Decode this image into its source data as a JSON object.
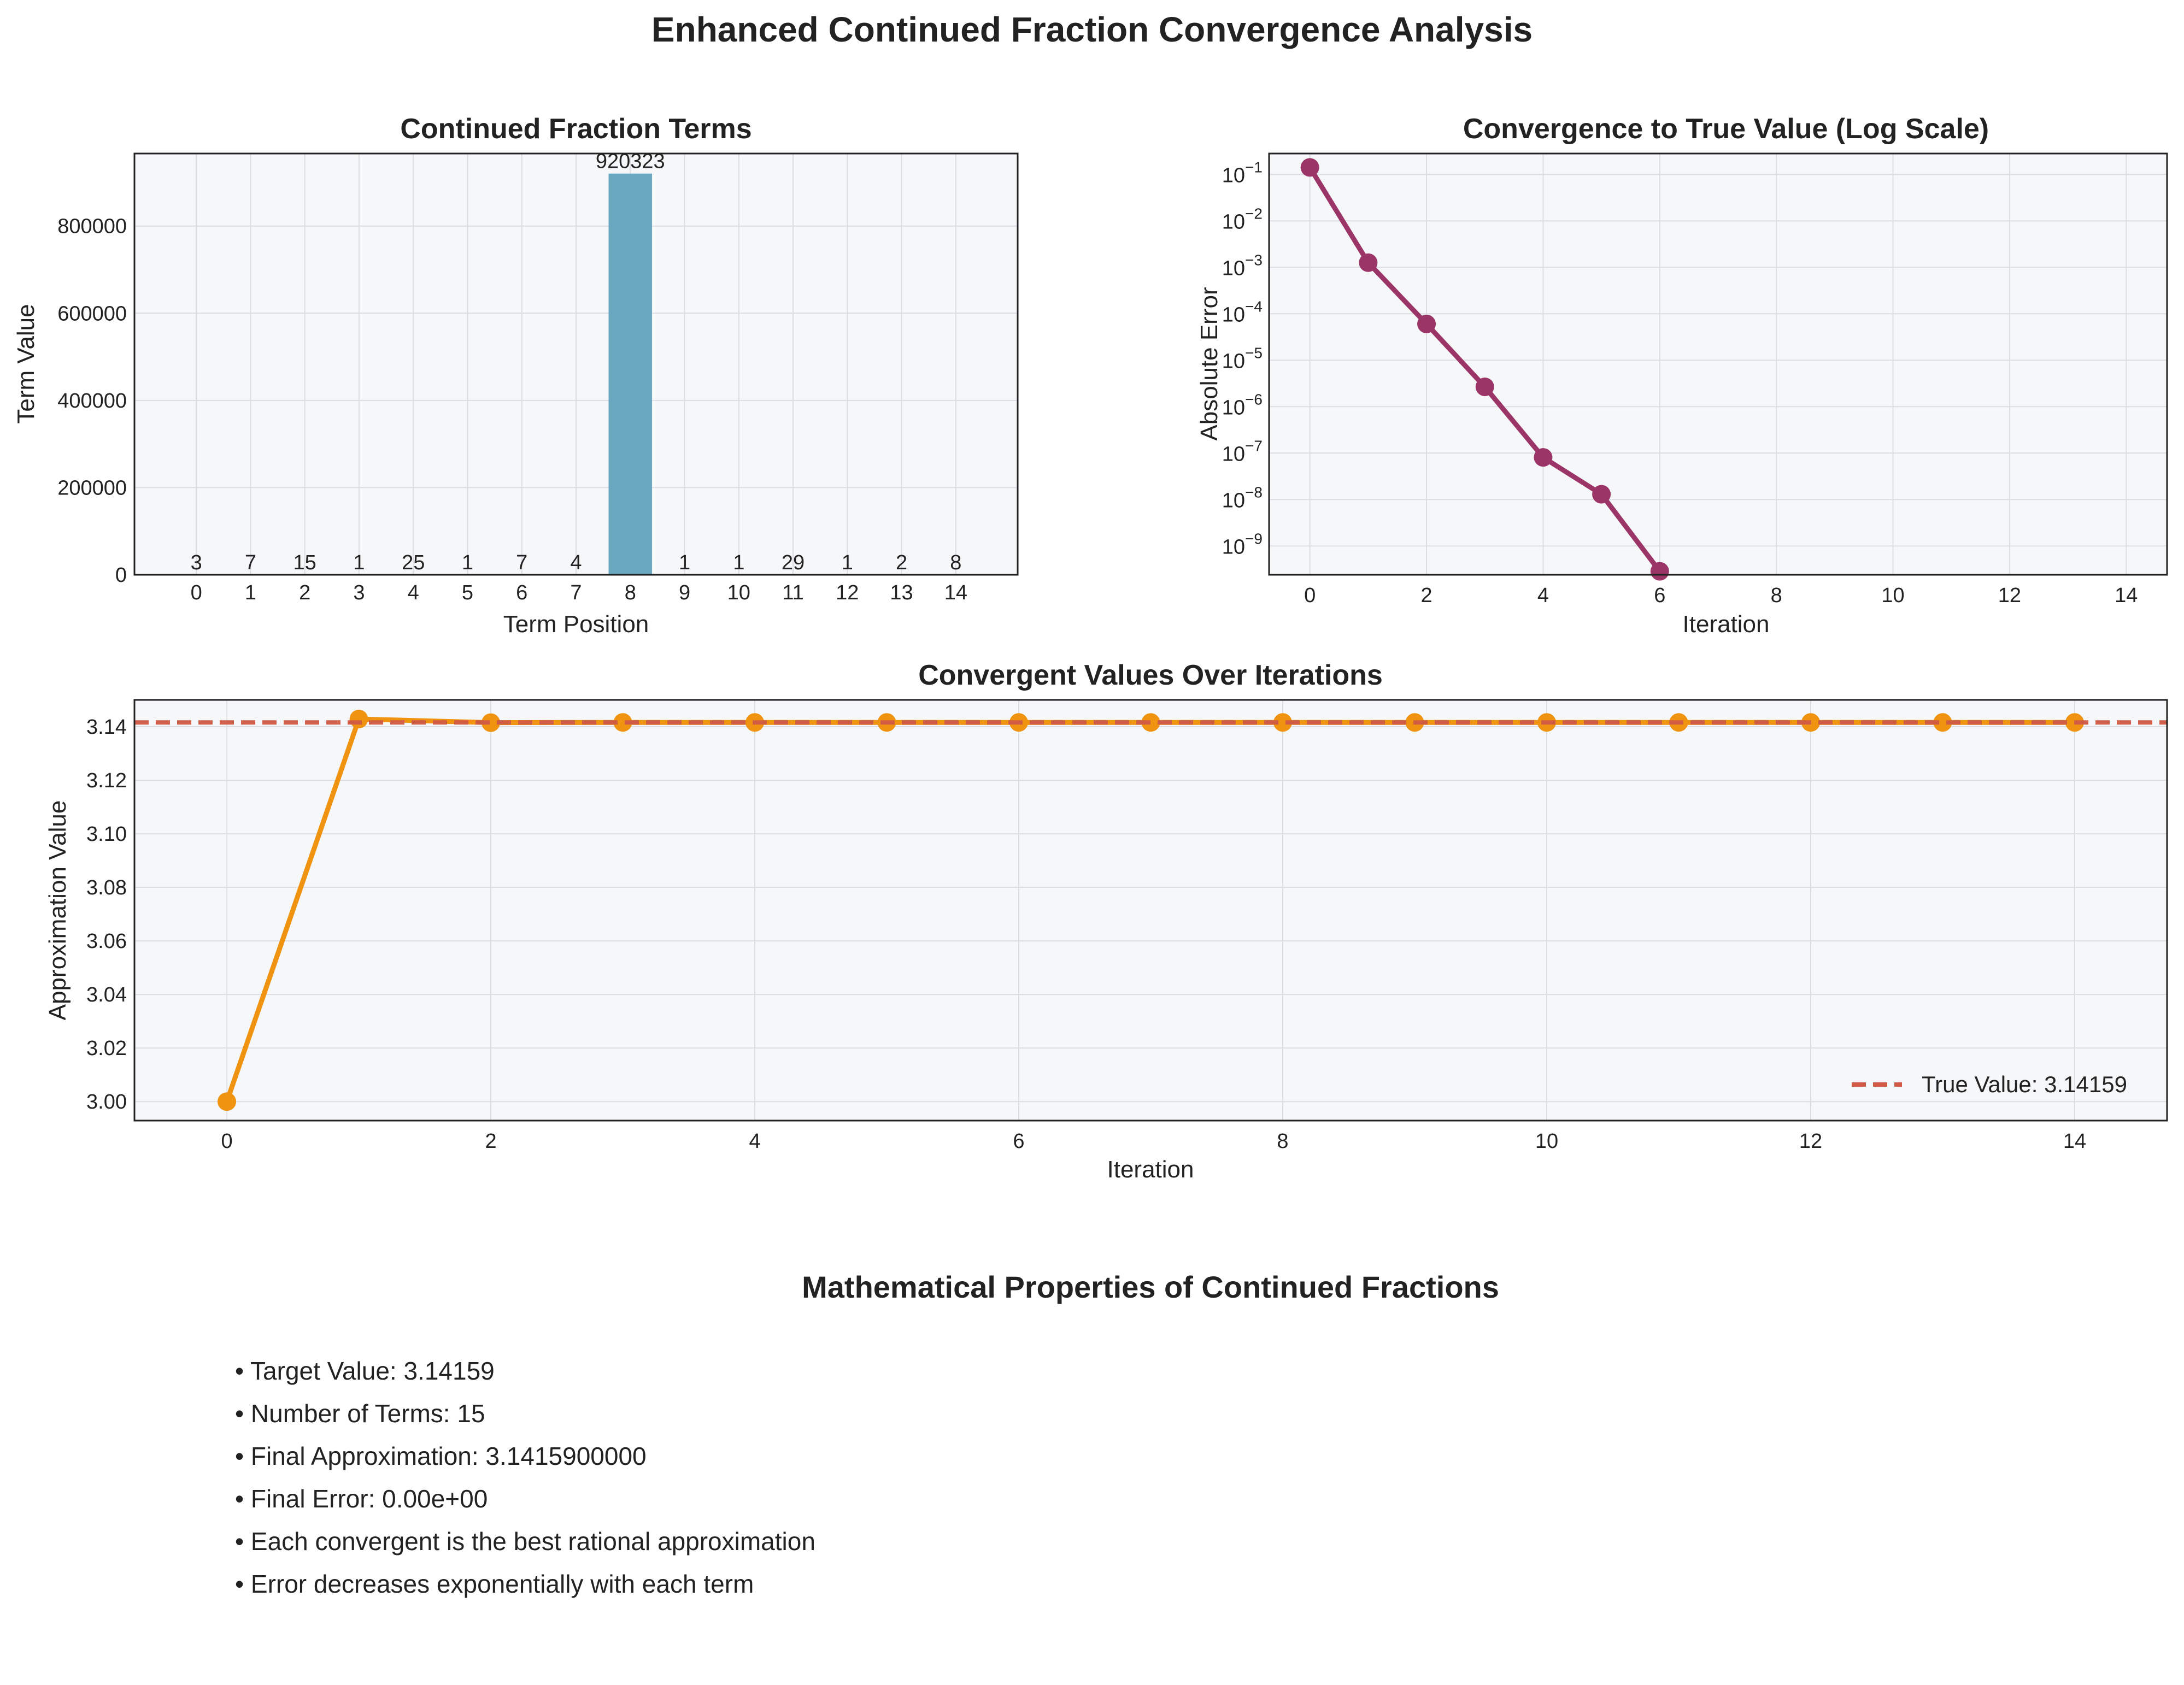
{
  "figure": {
    "title": "Enhanced Continued Fraction Convergence Analysis"
  },
  "colors": {
    "plot_bg": "#f6f7f9",
    "grid": "#dcdde2",
    "bar": "#6aa8c1",
    "error_line": "#9b3568",
    "convergent_line": "#ef9311",
    "true_value_line": "#cf5b44",
    "text": "#222222"
  },
  "chart_data": [
    {
      "id": "terms",
      "type": "bar",
      "title": "Continued Fraction Terms",
      "xlabel": "Term Position",
      "ylabel": "Term Value",
      "categories": [
        "0",
        "1",
        "2",
        "3",
        "4",
        "5",
        "6",
        "7",
        "8",
        "9",
        "10",
        "11",
        "12",
        "13",
        "14"
      ],
      "values": [
        3,
        7,
        15,
        1,
        25,
        1,
        7,
        4,
        920323,
        1,
        1,
        29,
        1,
        2,
        8
      ],
      "data_labels": [
        "3",
        "7",
        "15",
        "1",
        "25",
        "1",
        "7",
        "4",
        "920323",
        "1",
        "1",
        "29",
        "1",
        "2",
        "8"
      ],
      "yticks": [
        0,
        200000,
        400000,
        600000,
        800000
      ],
      "ytick_labels": [
        "0",
        "200000",
        "400000",
        "600000",
        "800000"
      ],
      "ylim": [
        0,
        966339
      ],
      "grid": true
    },
    {
      "id": "error",
      "type": "line",
      "title": "Convergence to True Value (Log Scale)",
      "xlabel": "Iteration",
      "ylabel": "Absolute Error",
      "yscale": "log",
      "x": [
        0,
        1,
        2,
        3,
        4,
        5,
        6
      ],
      "values": [
        0.14159,
        0.00126,
        6.04e-05,
        2.67e-06,
        8.08e-08,
        1.3e-08,
        2.85e-10
      ],
      "note_drop_to_zero_after_index": 6,
      "xticks": [
        0,
        2,
        4,
        6,
        8,
        10,
        12,
        14
      ],
      "xtick_labels": [
        "0",
        "2",
        "4",
        "6",
        "8",
        "10",
        "12",
        "14"
      ],
      "ytick_exponents": [
        -1,
        -2,
        -3,
        -4,
        -5,
        -6,
        -7,
        -8,
        -9
      ],
      "xlim": [
        -0.7,
        14.7
      ],
      "grid": true
    },
    {
      "id": "convergents",
      "type": "line",
      "title": "Convergent Values Over Iterations",
      "xlabel": "Iteration",
      "ylabel": "Approximation Value",
      "x": [
        0,
        1,
        2,
        3,
        4,
        5,
        6,
        7,
        8,
        9,
        10,
        11,
        12,
        13,
        14
      ],
      "values": [
        3.0,
        3.142857,
        3.141509,
        3.141593,
        3.14159,
        3.14159,
        3.14159,
        3.14159,
        3.14159,
        3.14159,
        3.14159,
        3.14159,
        3.14159,
        3.14159,
        3.14159
      ],
      "reference_line": {
        "value": 3.14159,
        "label": "True Value: 3.14159"
      },
      "xticks": [
        0,
        2,
        4,
        6,
        8,
        10,
        12,
        14
      ],
      "xtick_labels": [
        "0",
        "2",
        "4",
        "6",
        "8",
        "10",
        "12",
        "14"
      ],
      "yticks": [
        3.0,
        3.02,
        3.04,
        3.06,
        3.08,
        3.1,
        3.12,
        3.14
      ],
      "ytick_labels": [
        "3.00",
        "3.02",
        "3.04",
        "3.06",
        "3.08",
        "3.10",
        "3.12",
        "3.14"
      ],
      "xlim": [
        -0.7,
        14.7
      ],
      "ylim": [
        2.9929,
        3.15
      ],
      "legend_position": "lower right",
      "grid": true
    }
  ],
  "info": {
    "title": "Mathematical Properties of Continued Fractions",
    "lines": [
      "• Target Value: 3.14159",
      "• Number of Terms: 15",
      "• Final Approximation: 3.1415900000",
      "• Final Error: 0.00e+00",
      "• Each convergent is the best rational approximation",
      "• Error decreases exponentially with each term"
    ]
  }
}
